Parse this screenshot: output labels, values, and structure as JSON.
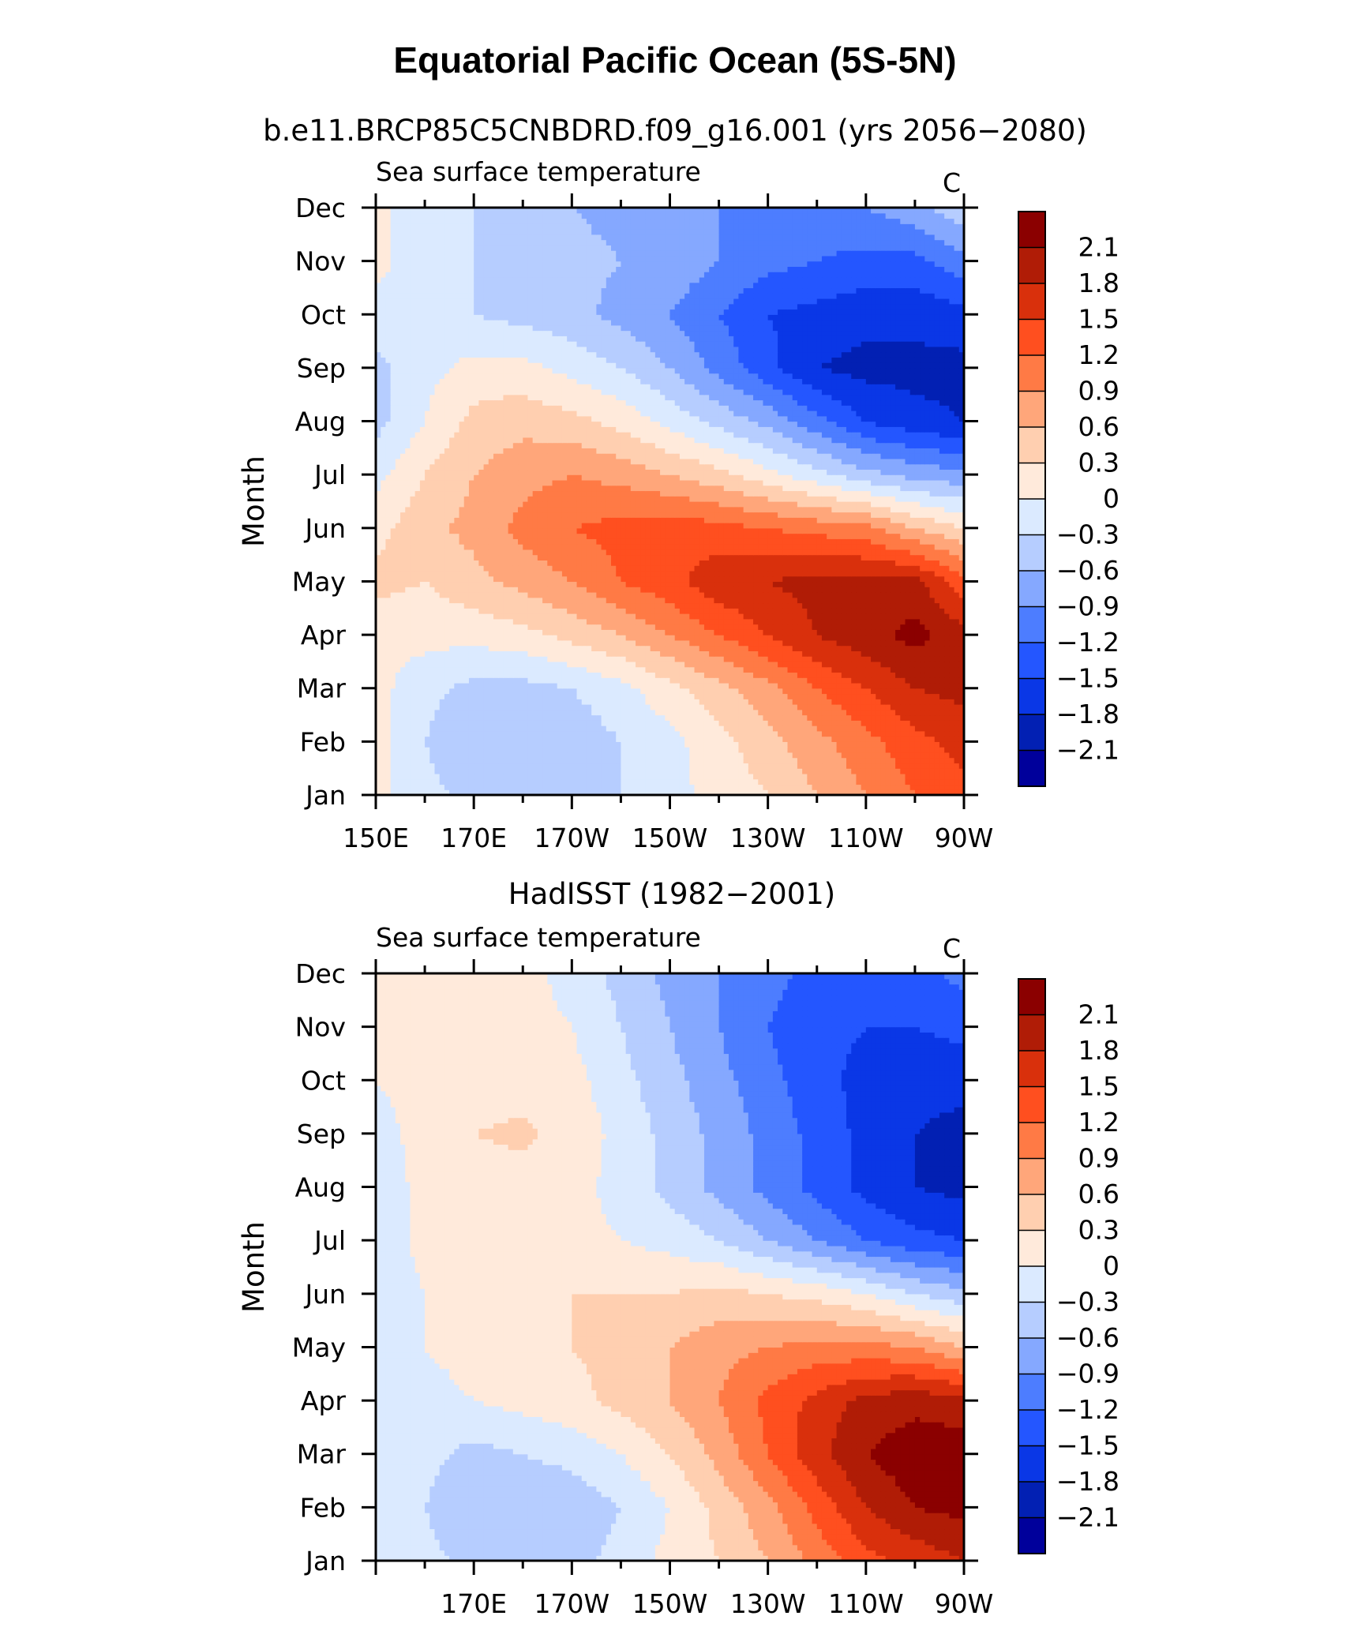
{
  "figure": {
    "title": "Equatorial Pacific Ocean (5S-5N)",
    "model_caption": "b.e11.BRCP85C5CNBDRD.f09_g16.001 (yrs 2056−2080)",
    "obs_caption": "HadISST (1982−2001)"
  },
  "chart_data": [
    {
      "type": "heatmap",
      "name": "model",
      "title": "Sea surface temperature",
      "units": "C",
      "xlabel": "",
      "ylabel": "Month",
      "xlim": [
        150,
        270
      ],
      "x_ticklabels": [
        "150E",
        "170E",
        "170W",
        "150W",
        "130W",
        "110W",
        "90W"
      ],
      "x_tickvalues": [
        150,
        170,
        190,
        210,
        230,
        250,
        270
      ],
      "y_ticklabels": [
        "Jan",
        "Feb",
        "Mar",
        "Apr",
        "May",
        "Jun",
        "Jul",
        "Aug",
        "Sep",
        "Oct",
        "Nov",
        "Dec"
      ],
      "x": [
        150,
        160,
        170,
        180,
        190,
        200,
        210,
        220,
        230,
        240,
        250,
        260,
        270
      ],
      "z": [
        [
          0.1,
          -0.2,
          -0.4,
          -0.6,
          -0.5,
          -0.3,
          -0.1,
          0.1,
          0.3,
          0.6,
          0.9,
          1.2,
          1.4
        ],
        [
          0.1,
          -0.3,
          -0.6,
          -0.6,
          -0.5,
          -0.3,
          -0.1,
          0.2,
          0.5,
          0.8,
          1.1,
          1.4,
          1.6
        ],
        [
          0.1,
          -0.2,
          -0.4,
          -0.4,
          -0.3,
          -0.1,
          0.2,
          0.5,
          0.8,
          1.2,
          1.5,
          1.8,
          1.9
        ],
        [
          0.1,
          0.1,
          0.1,
          0.2,
          0.4,
          0.6,
          0.9,
          1.2,
          1.5,
          1.8,
          2.0,
          2.2,
          1.9
        ],
        [
          0.4,
          0.3,
          0.5,
          0.7,
          0.9,
          1.2,
          1.4,
          1.7,
          1.8,
          1.9,
          1.9,
          1.9,
          1.3
        ],
        [
          0.2,
          0.5,
          0.7,
          1.0,
          1.2,
          1.3,
          1.4,
          1.3,
          1.2,
          1.1,
          1.0,
          0.6,
          0.3
        ],
        [
          -0.1,
          0.3,
          0.6,
          0.8,
          0.9,
          0.8,
          0.6,
          0.4,
          0.1,
          -0.2,
          -0.5,
          -0.7,
          -0.8
        ],
        [
          -0.4,
          0.0,
          0.4,
          0.5,
          0.4,
          0.2,
          -0.1,
          -0.4,
          -0.7,
          -1.1,
          -1.5,
          -1.7,
          -1.8
        ],
        [
          -0.4,
          -0.1,
          0.1,
          0.1,
          -0.1,
          -0.3,
          -0.6,
          -1.0,
          -1.4,
          -1.8,
          -1.9,
          -1.9,
          -1.9
        ],
        [
          -0.1,
          -0.2,
          -0.3,
          -0.4,
          -0.5,
          -0.7,
          -0.9,
          -1.2,
          -1.5,
          -1.6,
          -1.7,
          -1.7,
          -1.6
        ],
        [
          0.1,
          -0.2,
          -0.3,
          -0.4,
          -0.5,
          -0.6,
          -0.7,
          -0.9,
          -1.1,
          -1.2,
          -1.3,
          -1.3,
          -1.0
        ],
        [
          0.1,
          -0.2,
          -0.3,
          -0.5,
          -0.6,
          -0.7,
          -0.8,
          -0.9,
          -1.0,
          -1.0,
          -0.9,
          -0.7,
          -0.4
        ]
      ],
      "levels": [
        -2.1,
        -1.8,
        -1.5,
        -1.2,
        -0.9,
        -0.6,
        -0.3,
        0,
        0.3,
        0.6,
        0.9,
        1.2,
        1.5,
        1.8,
        2.1
      ]
    },
    {
      "type": "heatmap",
      "name": "obs",
      "title": "Sea surface temperature",
      "units": "C",
      "xlabel": "",
      "ylabel": "Month",
      "xlim": [
        150,
        270
      ],
      "x_ticklabels": [
        "170E",
        "170W",
        "150W",
        "130W",
        "110W",
        "90W"
      ],
      "x_tickvalues": [
        170,
        190,
        210,
        230,
        250,
        270
      ],
      "y_ticklabels": [
        "Jan",
        "Feb",
        "Mar",
        "Apr",
        "May",
        "Jun",
        "Jul",
        "Aug",
        "Sep",
        "Oct",
        "Nov",
        "Dec"
      ],
      "x": [
        150,
        160,
        170,
        180,
        190,
        200,
        210,
        220,
        230,
        240,
        250,
        260,
        270
      ],
      "z": [
        [
          0.0,
          -0.2,
          -0.4,
          -0.5,
          -0.4,
          -0.2,
          0.1,
          0.3,
          0.6,
          1.0,
          1.4,
          1.6,
          1.8
        ],
        [
          -0.1,
          -0.3,
          -0.6,
          -0.6,
          -0.5,
          -0.3,
          0.0,
          0.4,
          0.8,
          1.3,
          1.8,
          2.1,
          2.2
        ],
        [
          0.0,
          -0.2,
          -0.4,
          -0.3,
          -0.2,
          0.0,
          0.3,
          0.7,
          1.2,
          1.7,
          2.1,
          2.3,
          2.3
        ],
        [
          -0.1,
          -0.1,
          0.0,
          0.1,
          0.2,
          0.4,
          0.6,
          0.9,
          1.3,
          1.6,
          1.9,
          2.0,
          1.9
        ],
        [
          -0.2,
          0.0,
          0.1,
          0.2,
          0.3,
          0.4,
          0.6,
          0.8,
          0.9,
          1.0,
          1.0,
          0.9,
          0.6
        ],
        [
          -0.3,
          0.0,
          0.1,
          0.2,
          0.3,
          0.3,
          0.3,
          0.4,
          0.3,
          0.2,
          0.0,
          -0.3,
          -0.5
        ],
        [
          -0.2,
          0.1,
          0.2,
          0.2,
          0.1,
          0.0,
          -0.1,
          -0.3,
          -0.6,
          -0.9,
          -1.2,
          -1.4,
          -1.5
        ],
        [
          -0.2,
          0.1,
          0.2,
          0.2,
          0.1,
          -0.1,
          -0.4,
          -0.7,
          -1.0,
          -1.3,
          -1.6,
          -1.8,
          -1.9
        ],
        [
          -0.1,
          0.1,
          0.3,
          0.35,
          0.2,
          -0.1,
          -0.4,
          -0.7,
          -1.0,
          -1.3,
          -1.6,
          -1.8,
          -1.9
        ],
        [
          0.0,
          0.1,
          0.2,
          0.2,
          0.1,
          -0.2,
          -0.5,
          -0.8,
          -1.1,
          -1.4,
          -1.6,
          -1.7,
          -1.7
        ],
        [
          0.0,
          0.1,
          0.1,
          0.1,
          0.0,
          -0.3,
          -0.6,
          -0.9,
          -1.2,
          -1.4,
          -1.5,
          -1.5,
          -1.4
        ],
        [
          0.1,
          0.1,
          0.1,
          0.1,
          -0.1,
          -0.4,
          -0.7,
          -0.9,
          -1.1,
          -1.3,
          -1.4,
          -1.3,
          -1.1
        ]
      ],
      "levels": [
        -2.1,
        -1.8,
        -1.5,
        -1.2,
        -0.9,
        -0.6,
        -0.3,
        0,
        0.3,
        0.6,
        0.9,
        1.2,
        1.5,
        1.8,
        2.1
      ]
    }
  ],
  "colorbar": {
    "labels": [
      "2.1",
      "1.8",
      "1.5",
      "1.2",
      "0.9",
      "0.6",
      "0.3",
      "0",
      "−0.3",
      "−0.6",
      "−0.9",
      "−1.2",
      "−1.5",
      "−1.8",
      "−2.1"
    ],
    "colors": [
      "#8b0000",
      "#b01c06",
      "#d9300c",
      "#ff4f1f",
      "#ff7a45",
      "#ffa67a",
      "#ffcfb0",
      "#ffeadb",
      "#dbeaff",
      "#b6cdff",
      "#85a8ff",
      "#4d7dff",
      "#2456ff",
      "#0a37e6",
      "#0220b3",
      "#00009b"
    ]
  }
}
